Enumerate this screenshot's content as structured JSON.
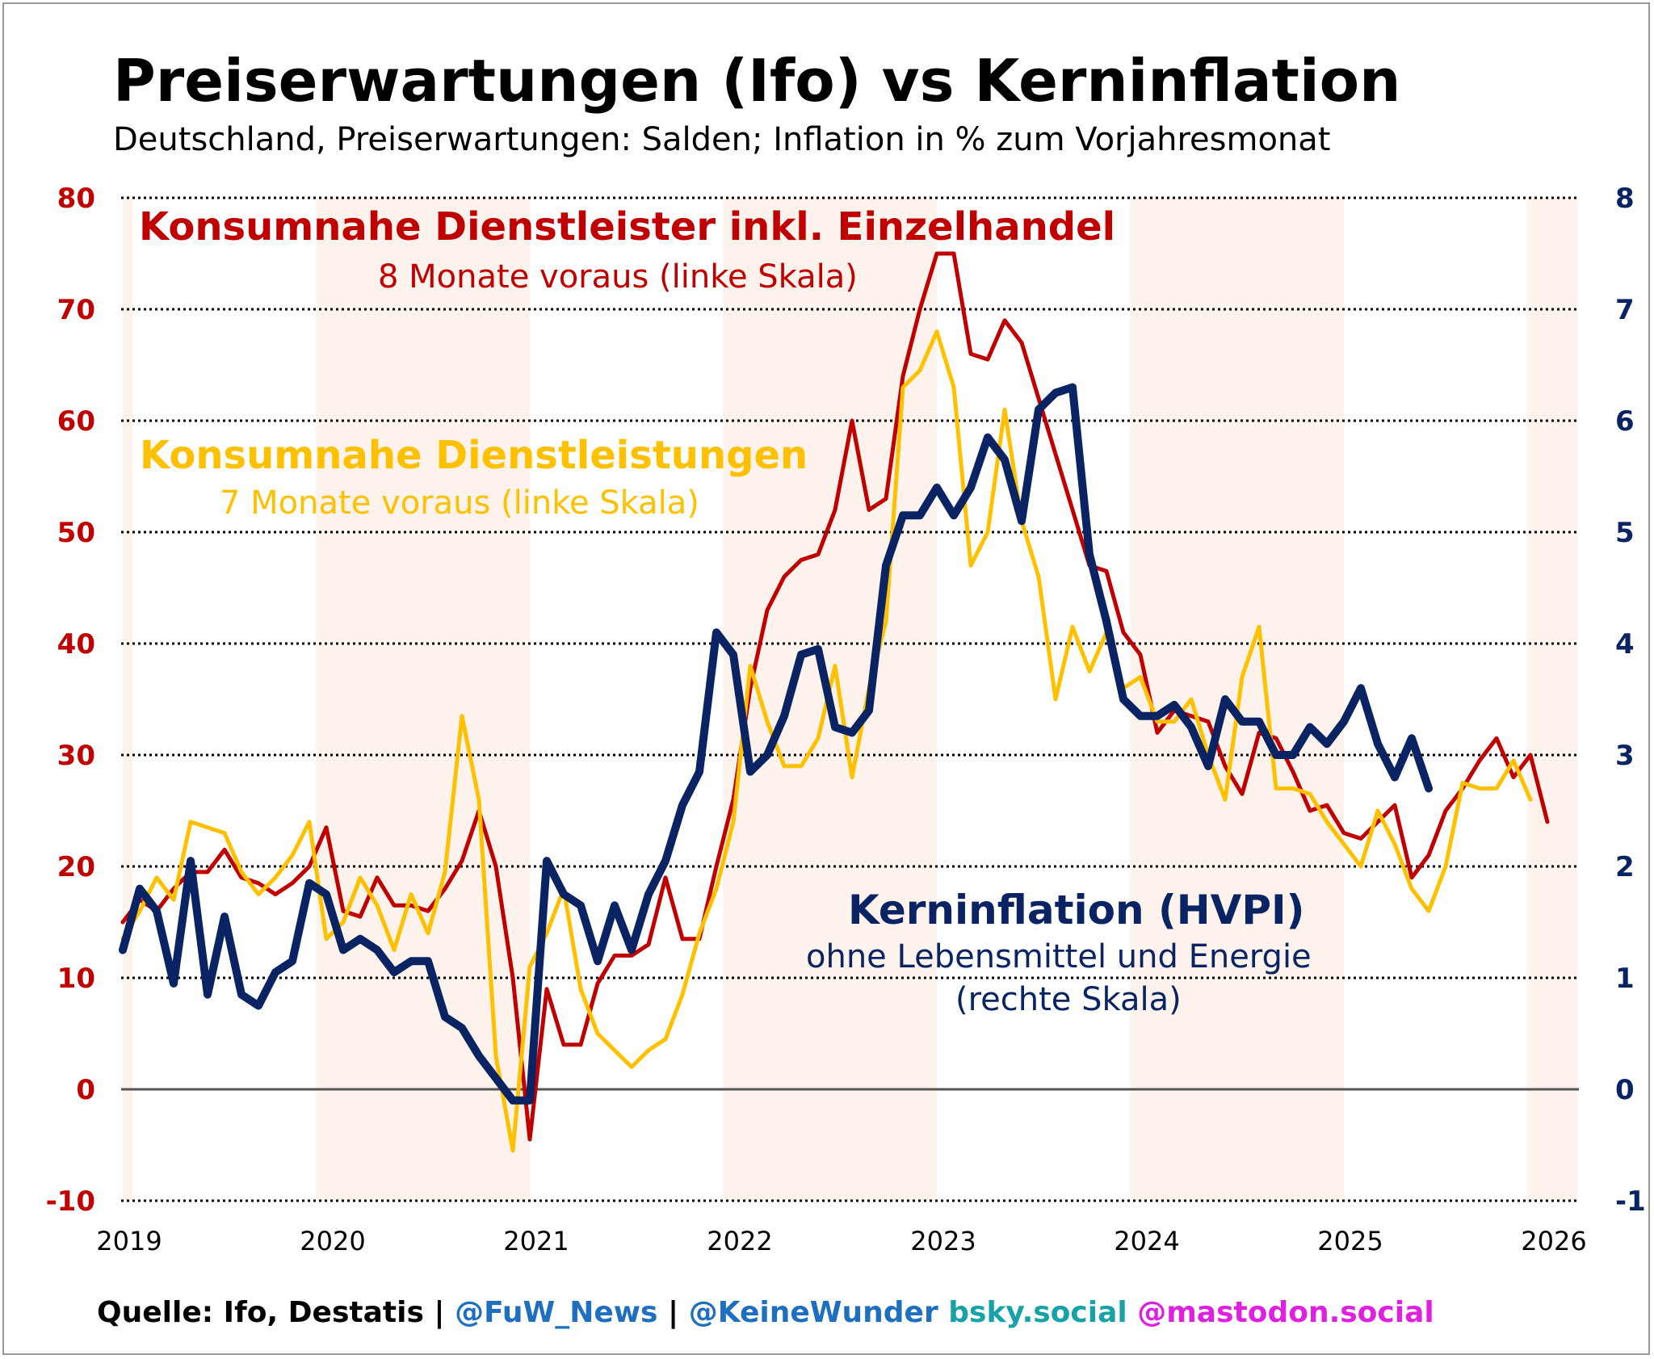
{
  "title": "Preiserwartungen (Ifo) vs Kerninflation",
  "subtitle": "Deutschland, Preiserwartungen: Salden; Inflation in % zum Vorjahresmonat",
  "annotations": {
    "red_title": "Konsumnahe Dienstleister inkl. Einzelhandel",
    "red_sub": "8 Monate voraus (linke Skala)",
    "yellow_title": "Konsumnahe Dienstleistungen",
    "yellow_sub": "7 Monate voraus (linke Skala)",
    "blue_title": "Kerninflation (HVPI)",
    "blue_sub1": "ohne Lebensmittel und Energie",
    "blue_sub2": "(rechte Skala)"
  },
  "footer": {
    "source": "Quelle: Ifo, Destatis |",
    "handle1": "@FuW_News",
    "sep": "|",
    "handle2": "@KeineWunder",
    "bsky": "bsky.social",
    "mastodon": "@mastodon.social"
  },
  "colors": {
    "red": "#c00000",
    "yellow": "#ffc000",
    "blue": "#0a2463",
    "shade": "#fdf2ec",
    "footer_blue": "#1f6fc1",
    "bsky": "#17a2a8",
    "mastodon": "#e020e0"
  },
  "chart_data": {
    "type": "line",
    "x_start": "2019-01",
    "x_step": "month",
    "x_ticks": [
      "2019",
      "2020",
      "2021",
      "2022",
      "2023",
      "2024",
      "2025",
      "2026"
    ],
    "x_range": [
      2019.0,
      2026.25
    ],
    "left_axis": {
      "ticks": [
        "80",
        "70",
        "60",
        "50",
        "40",
        "30",
        "20",
        "10",
        "0",
        "-10"
      ],
      "range": [
        -10,
        80
      ]
    },
    "right_axis": {
      "ticks": [
        "8",
        "7",
        "6",
        "5",
        "4",
        "3",
        "2",
        "1",
        "0",
        "-1"
      ],
      "range": [
        -1,
        8
      ]
    },
    "shaded_years": [
      [
        2019.0,
        2019.0
      ],
      [
        2019.95,
        2021.0
      ],
      [
        2021.95,
        2023.0
      ],
      [
        2023.95,
        2025.0
      ],
      [
        2025.9,
        2026.15
      ]
    ],
    "series": [
      {
        "name": "Konsumnahe Dienstleister inkl. Einzelhandel",
        "axis": "left",
        "values": [
          15,
          17,
          16,
          18,
          19.5,
          19.5,
          21.5,
          19,
          18.5,
          17.5,
          18.5,
          20,
          23.5,
          16,
          15.5,
          19,
          16.5,
          16.5,
          16,
          18,
          20.5,
          25,
          20,
          10,
          -4.5,
          9,
          4,
          4,
          9.5,
          12,
          12,
          13,
          19,
          13.5,
          13.5,
          20,
          26,
          36,
          43,
          46,
          47.5,
          48,
          52,
          60,
          52,
          53,
          64,
          70,
          75,
          75,
          66,
          65.5,
          69,
          67,
          62,
          57,
          52,
          47,
          46.5,
          41,
          39,
          32,
          34,
          33.5,
          33,
          29,
          26.5,
          32,
          31.5,
          28.5,
          25,
          25.5,
          23,
          22.5,
          24,
          25.5,
          19,
          21,
          25,
          27,
          29.5,
          31.5,
          28,
          30,
          24
        ]
      },
      {
        "name": "Konsumnahe Dienstleistungen",
        "axis": "left",
        "values": [
          13.5,
          16,
          19,
          17,
          24,
          23.5,
          23,
          19.5,
          17.5,
          19,
          21,
          24,
          13.5,
          15,
          19,
          16.5,
          12.5,
          17.5,
          14,
          19.5,
          33.5,
          26,
          3,
          -5.5,
          11,
          14,
          18,
          9,
          5,
          3.5,
          2,
          3.5,
          4.5,
          8.5,
          14,
          18,
          24,
          38,
          33,
          29,
          29,
          31.5,
          38,
          28,
          36,
          42,
          63,
          64.5,
          68,
          63,
          47,
          50,
          61,
          51,
          46,
          35,
          41.5,
          37.5,
          41,
          36,
          37,
          33,
          33,
          35,
          30,
          26,
          37,
          41.5,
          27,
          27,
          26.5,
          24,
          22,
          20,
          25,
          22,
          18,
          16,
          20,
          27.5,
          27,
          27,
          29.5,
          26
        ]
      },
      {
        "name": "Kerninflation (HVPI)",
        "axis": "right",
        "values": [
          1.25,
          1.8,
          1.6,
          0.95,
          2.05,
          0.85,
          1.55,
          0.85,
          0.75,
          1.05,
          1.15,
          1.85,
          1.75,
          1.25,
          1.35,
          1.25,
          1.05,
          1.15,
          1.15,
          0.65,
          0.55,
          0.3,
          0.1,
          -0.1,
          -0.1,
          2.05,
          1.75,
          1.65,
          1.15,
          1.65,
          1.25,
          1.75,
          2.05,
          2.55,
          2.85,
          4.1,
          3.9,
          2.85,
          3.0,
          3.35,
          3.9,
          3.95,
          3.25,
          3.2,
          3.4,
          4.7,
          5.15,
          5.15,
          5.4,
          5.15,
          5.4,
          5.85,
          5.65,
          5.1,
          6.1,
          6.25,
          6.3,
          4.8,
          4.2,
          3.5,
          3.35,
          3.35,
          3.45,
          3.25,
          2.9,
          3.5,
          3.3,
          3.3,
          3.0,
          3.0,
          3.25,
          3.1,
          3.3,
          3.6,
          3.1,
          2.8,
          3.15,
          2.7
        ]
      }
    ]
  }
}
